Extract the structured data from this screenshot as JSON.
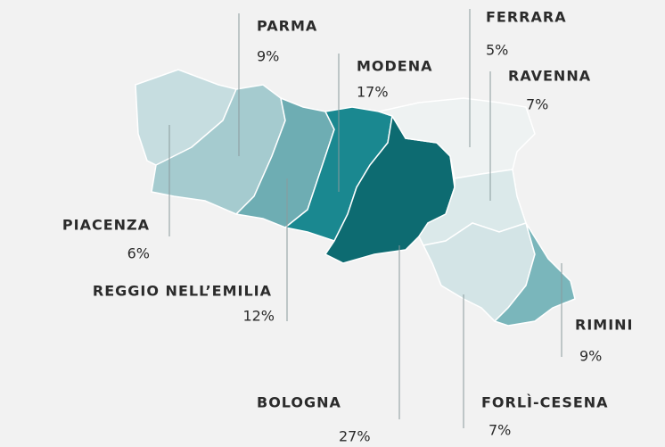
{
  "chart_data": {
    "type": "map",
    "categories": [
      "PIACENZA",
      "PARMA",
      "REGGIO NELL’EMILIA",
      "MODENA",
      "BOLOGNA",
      "FERRARA",
      "RAVENNA",
      "FORLÌ-CESENA",
      "RIMINI"
    ],
    "values": [
      6,
      9,
      12,
      17,
      27,
      5,
      7,
      7,
      9
    ],
    "value_labels": [
      "6%",
      "9%",
      "12%",
      "17%",
      "27%",
      "5%",
      "7%",
      "7%",
      "9%"
    ],
    "colors": [
      "#c6dde0",
      "#a5cbcf",
      "#6eadb3",
      "#1a8890",
      "#0d6b71",
      "#eef2f2",
      "#dbe9ea",
      "#d3e4e6",
      "#7ab6bb"
    ]
  }
}
